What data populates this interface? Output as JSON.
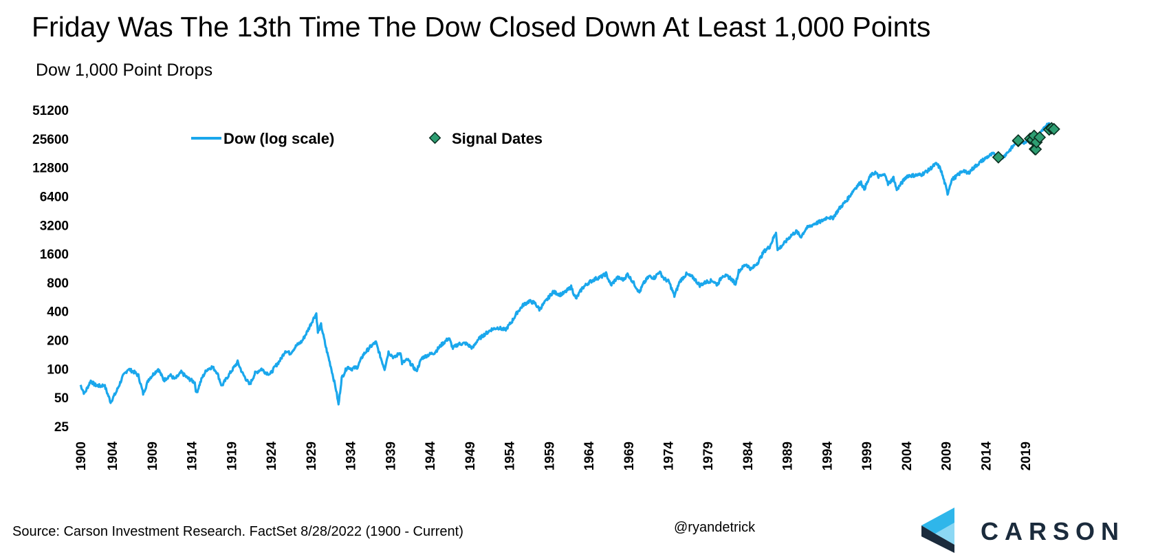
{
  "header": {
    "title": "Friday Was The 13th Time The Dow Closed Down At Least 1,000 Points",
    "subtitle": "Dow 1,000 Point Drops"
  },
  "footer": {
    "source": "Source: Carson Investment Research. FactSet 8/28/2022 (1900 - Current)",
    "handle": "@ryandetrick",
    "logo_text": "CARSON"
  },
  "colors": {
    "dow_line": "#1aa7ec",
    "signal_fill": "#2e9e72",
    "signal_stroke": "#0b2e20",
    "logo_dark": "#1b2b3c",
    "logo_light": "#2fb6ea"
  },
  "chart_data": {
    "type": "line",
    "y_scale": "log2",
    "ylim": [
      25,
      51200
    ],
    "yticks": [
      51200,
      25600,
      12800,
      6400,
      3200,
      1600,
      800,
      400,
      200,
      100,
      50,
      25
    ],
    "xlim": [
      1900,
      2022.8
    ],
    "xticks": [
      "1900",
      "1904",
      "1909",
      "1914",
      "1919",
      "1924",
      "1929",
      "1934",
      "1939",
      "1944",
      "1949",
      "1954",
      "1959",
      "1964",
      "1969",
      "1974",
      "1979",
      "1984",
      "1989",
      "1994",
      "1999",
      "2004",
      "2009",
      "2014",
      "2019"
    ],
    "legend": {
      "placement": "top-left"
    },
    "series": [
      {
        "name": "Dow (log scale)",
        "kind": "line",
        "points": [
          [
            1900.0,
            68
          ],
          [
            1900.5,
            55
          ],
          [
            1901.3,
            75
          ],
          [
            1901.8,
            68
          ],
          [
            1902.5,
            66
          ],
          [
            1903.0,
            68
          ],
          [
            1903.8,
            45
          ],
          [
            1904.5,
            57
          ],
          [
            1905.3,
            82
          ],
          [
            1906.0,
            100
          ],
          [
            1906.8,
            92
          ],
          [
            1907.3,
            85
          ],
          [
            1907.9,
            55
          ],
          [
            1908.6,
            78
          ],
          [
            1909.8,
            100
          ],
          [
            1910.5,
            76
          ],
          [
            1911.3,
            86
          ],
          [
            1911.9,
            78
          ],
          [
            1912.7,
            92
          ],
          [
            1913.5,
            80
          ],
          [
            1914.4,
            72
          ],
          [
            1914.6,
            55
          ],
          [
            1915.3,
            80
          ],
          [
            1915.9,
            98
          ],
          [
            1916.6,
            105
          ],
          [
            1917.2,
            92
          ],
          [
            1917.8,
            66
          ],
          [
            1918.5,
            82
          ],
          [
            1919.8,
            118
          ],
          [
            1920.4,
            90
          ],
          [
            1921.3,
            68
          ],
          [
            1922.0,
            90
          ],
          [
            1922.8,
            100
          ],
          [
            1923.3,
            92
          ],
          [
            1923.9,
            88
          ],
          [
            1924.5,
            105
          ],
          [
            1925.2,
            125
          ],
          [
            1925.8,
            155
          ],
          [
            1926.4,
            145
          ],
          [
            1927.2,
            175
          ],
          [
            1927.9,
            195
          ],
          [
            1928.5,
            240
          ],
          [
            1929.3,
            330
          ],
          [
            1929.7,
            380
          ],
          [
            1929.9,
            240
          ],
          [
            1930.3,
            290
          ],
          [
            1930.9,
            170
          ],
          [
            1931.6,
            100
          ],
          [
            1932.2,
            60
          ],
          [
            1932.5,
            42
          ],
          [
            1932.9,
            80
          ],
          [
            1933.6,
            105
          ],
          [
            1934.2,
            100
          ],
          [
            1934.9,
            105
          ],
          [
            1935.6,
            140
          ],
          [
            1936.5,
            170
          ],
          [
            1937.2,
            190
          ],
          [
            1937.9,
            125
          ],
          [
            1938.3,
            100
          ],
          [
            1938.8,
            150
          ],
          [
            1939.5,
            130
          ],
          [
            1940.3,
            150
          ],
          [
            1940.5,
            115
          ],
          [
            1941.2,
            125
          ],
          [
            1942.3,
            95
          ],
          [
            1943.0,
            130
          ],
          [
            1943.8,
            140
          ],
          [
            1944.6,
            148
          ],
          [
            1945.5,
            180
          ],
          [
            1946.4,
            210
          ],
          [
            1946.9,
            165
          ],
          [
            1947.6,
            182
          ],
          [
            1948.5,
            185
          ],
          [
            1949.4,
            165
          ],
          [
            1950.0,
            200
          ],
          [
            1950.9,
            230
          ],
          [
            1951.8,
            260
          ],
          [
            1952.6,
            270
          ],
          [
            1953.5,
            255
          ],
          [
            1954.3,
            310
          ],
          [
            1955.0,
            390
          ],
          [
            1955.8,
            470
          ],
          [
            1956.5,
            510
          ],
          [
            1957.2,
            490
          ],
          [
            1957.8,
            420
          ],
          [
            1958.6,
            510
          ],
          [
            1959.5,
            640
          ],
          [
            1960.4,
            600
          ],
          [
            1960.9,
            620
          ],
          [
            1961.8,
            720
          ],
          [
            1962.4,
            540
          ],
          [
            1963.2,
            700
          ],
          [
            1964.0,
            800
          ],
          [
            1964.9,
            880
          ],
          [
            1965.6,
            920
          ],
          [
            1966.2,
            990
          ],
          [
            1966.8,
            750
          ],
          [
            1967.6,
            900
          ],
          [
            1968.4,
            860
          ],
          [
            1968.9,
            980
          ],
          [
            1969.6,
            810
          ],
          [
            1970.4,
            630
          ],
          [
            1970.9,
            780
          ],
          [
            1971.6,
            930
          ],
          [
            1972.3,
            900
          ],
          [
            1972.9,
            1040
          ],
          [
            1973.5,
            880
          ],
          [
            1974.1,
            820
          ],
          [
            1974.8,
            580
          ],
          [
            1975.5,
            830
          ],
          [
            1976.3,
            980
          ],
          [
            1977.2,
            900
          ],
          [
            1978.0,
            750
          ],
          [
            1978.9,
            820
          ],
          [
            1979.6,
            840
          ],
          [
            1980.2,
            760
          ],
          [
            1980.9,
            960
          ],
          [
            1981.8,
            900
          ],
          [
            1982.5,
            780
          ],
          [
            1982.9,
            1050
          ],
          [
            1983.8,
            1250
          ],
          [
            1984.5,
            1100
          ],
          [
            1985.3,
            1300
          ],
          [
            1986.1,
            1700
          ],
          [
            1986.8,
            1900
          ],
          [
            1987.6,
            2700
          ],
          [
            1987.8,
            1750
          ],
          [
            1988.6,
            2050
          ],
          [
            1989.5,
            2500
          ],
          [
            1990.2,
            2750
          ],
          [
            1990.7,
            2400
          ],
          [
            1991.4,
            2950
          ],
          [
            1992.4,
            3300
          ],
          [
            1993.3,
            3500
          ],
          [
            1994.1,
            3900
          ],
          [
            1994.7,
            3750
          ],
          [
            1995.6,
            4800
          ],
          [
            1996.5,
            5800
          ],
          [
            1997.5,
            7700
          ],
          [
            1998.3,
            9000
          ],
          [
            1998.7,
            7600
          ],
          [
            1999.5,
            10500
          ],
          [
            2000.1,
            11400
          ],
          [
            2000.5,
            10300
          ],
          [
            2001.4,
            10800
          ],
          [
            2001.7,
            8500
          ],
          [
            2002.4,
            10000
          ],
          [
            2002.8,
            7500
          ],
          [
            2003.5,
            9000
          ],
          [
            2004.1,
            10500
          ],
          [
            2005.0,
            10600
          ],
          [
            2005.9,
            10800
          ],
          [
            2006.8,
            12000
          ],
          [
            2007.5,
            13500
          ],
          [
            2007.8,
            14000
          ],
          [
            2008.3,
            12500
          ],
          [
            2008.9,
            8500
          ],
          [
            2009.2,
            6800
          ],
          [
            2009.7,
            9500
          ],
          [
            2010.4,
            10500
          ],
          [
            2011.2,
            12000
          ],
          [
            2011.7,
            11000
          ],
          [
            2012.6,
            13000
          ],
          [
            2013.5,
            15000
          ],
          [
            2014.2,
            16500
          ],
          [
            2014.9,
            17800
          ],
          [
            2015.6,
            16500
          ],
          [
            2016.1,
            16200
          ],
          [
            2016.9,
            19000
          ],
          [
            2017.5,
            21500
          ],
          [
            2018.0,
            25500
          ],
          [
            2018.4,
            24000
          ],
          [
            2018.9,
            23500
          ],
          [
            2019.5,
            26500
          ],
          [
            2020.1,
            28800
          ],
          [
            2020.3,
            19500
          ],
          [
            2020.6,
            26500
          ],
          [
            2021.1,
            31000
          ],
          [
            2021.6,
            35000
          ],
          [
            2022.0,
            36500
          ],
          [
            2022.4,
            31000
          ],
          [
            2022.6,
            33000
          ]
        ]
      },
      {
        "name": "Signal Dates",
        "kind": "markers",
        "points": [
          [
            2015.6,
            16400
          ],
          [
            2018.1,
            24300
          ],
          [
            2018.1,
            24600
          ],
          [
            2019.6,
            25700
          ],
          [
            2019.9,
            25000
          ],
          [
            2020.1,
            27500
          ],
          [
            2020.2,
            20000
          ],
          [
            2020.3,
            19900
          ],
          [
            2020.4,
            23600
          ],
          [
            2020.8,
            26500
          ],
          [
            2022.0,
            32000
          ],
          [
            2022.3,
            33000
          ],
          [
            2022.6,
            32300
          ]
        ]
      }
    ]
  }
}
